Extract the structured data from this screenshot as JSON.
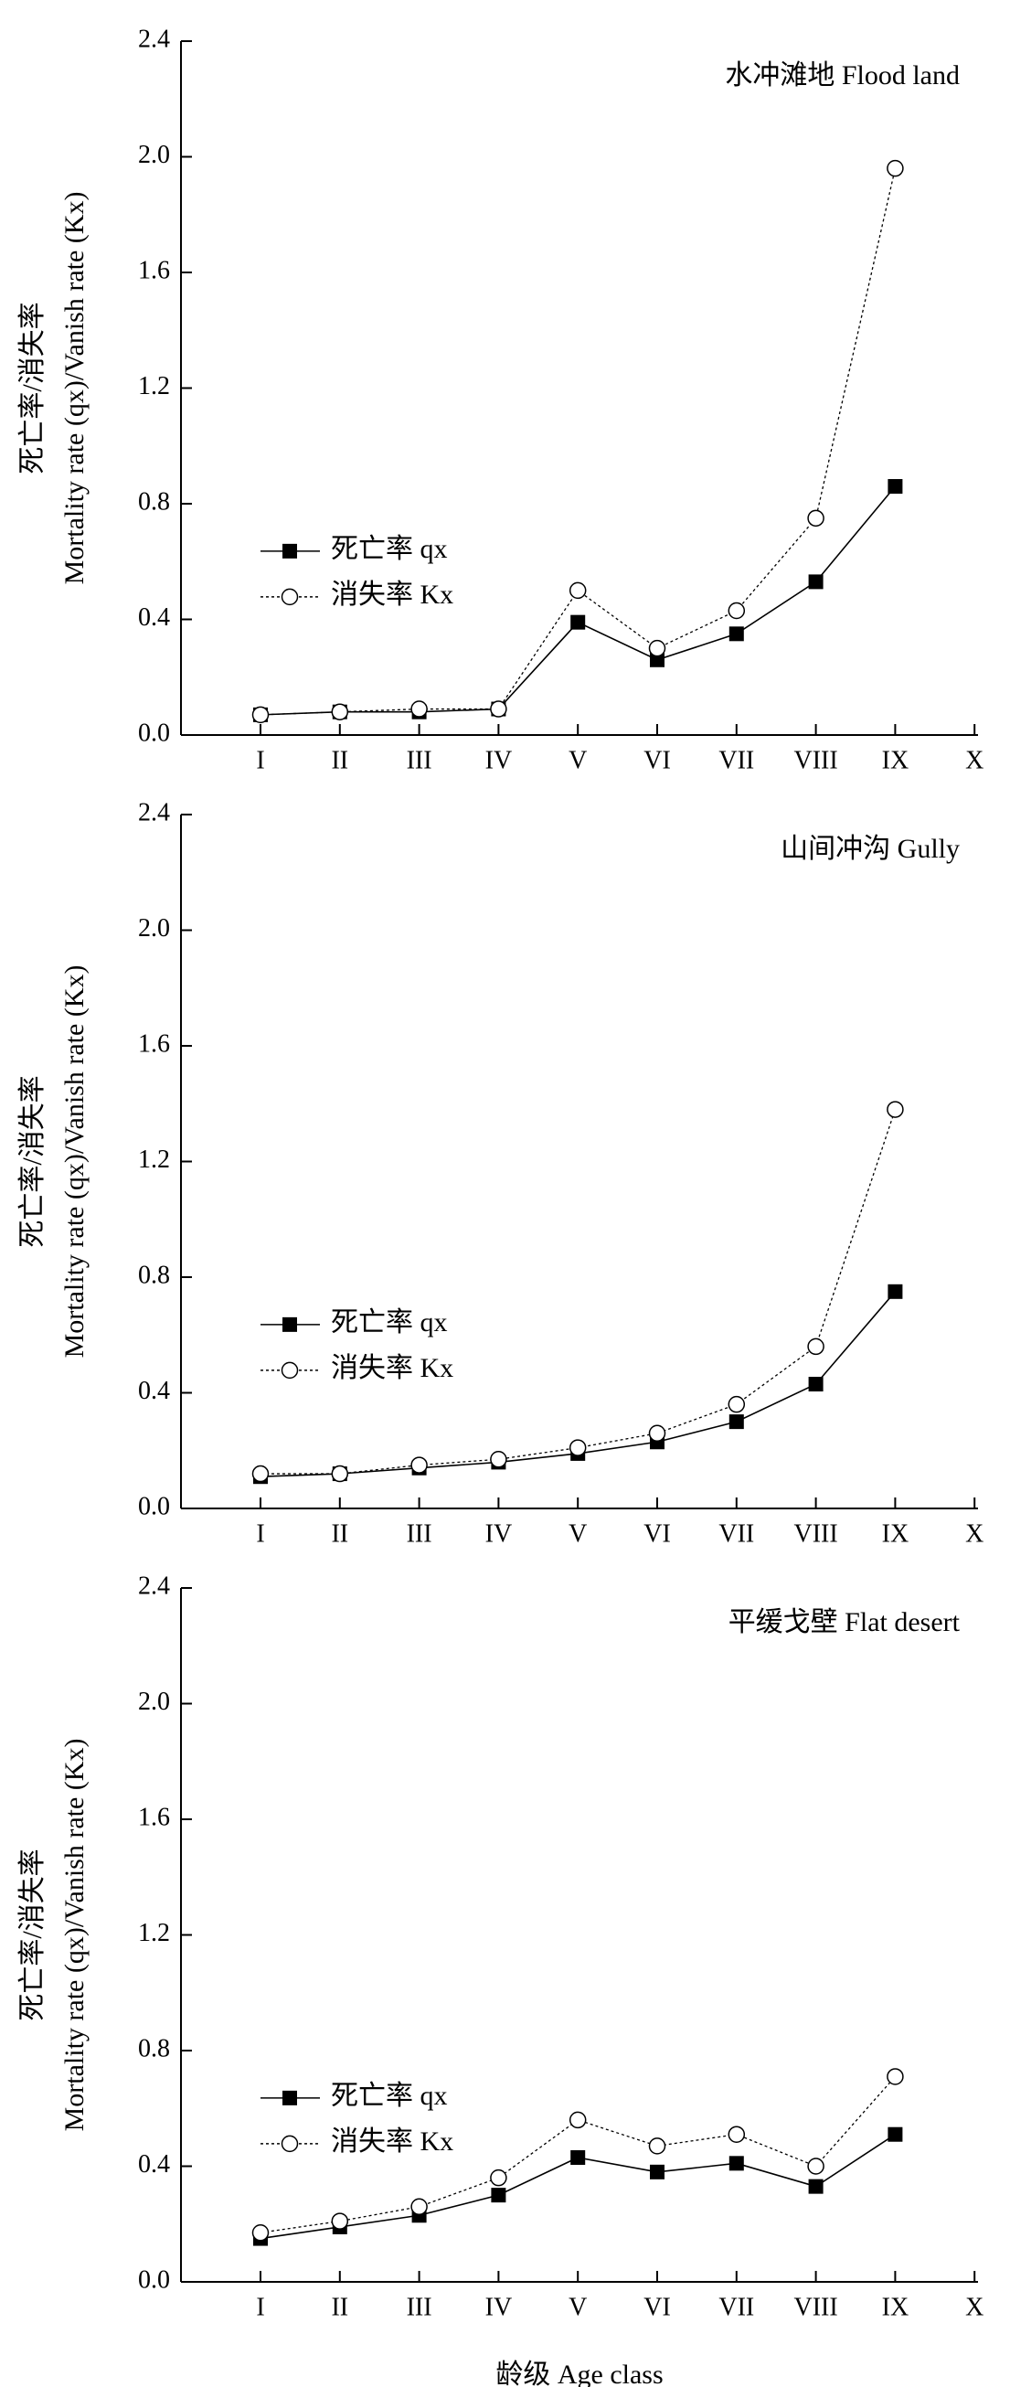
{
  "chart_data": [
    {
      "type": "line",
      "title": "水冲滩地 Flood land",
      "ylabel": [
        "死亡率/消失率",
        "Mortality rate (qx)/Vanish rate (Kx)"
      ],
      "categories": [
        "I",
        "II",
        "III",
        "IV",
        "V",
        "VI",
        "VII",
        "VIII",
        "IX",
        "X"
      ],
      "series": [
        {
          "name": "死亡率 qx",
          "color": "#000000",
          "marker": "square",
          "dash": false,
          "values": [
            0.07,
            0.08,
            0.08,
            0.09,
            0.39,
            0.26,
            0.35,
            0.53,
            0.86,
            null
          ]
        },
        {
          "name": "消失率 Kx",
          "color": "#000000",
          "marker": "circle",
          "dash": true,
          "values": [
            0.07,
            0.08,
            0.09,
            0.09,
            0.5,
            0.3,
            0.43,
            0.75,
            1.96,
            null
          ]
        }
      ],
      "ylim": [
        0,
        2.4
      ],
      "yticks": [
        {
          "value": 0,
          "label": "0.0"
        },
        0.4,
        0.8,
        1.2,
        1.6,
        {
          "value": 2,
          "label": "2.0"
        },
        2.4
      ]
    },
    {
      "type": "line",
      "title": "山间冲沟 Gully",
      "ylabel": [
        "死亡率/消失率",
        "Mortality rate (qx)/Vanish rate (Kx)"
      ],
      "categories": [
        "I",
        "II",
        "III",
        "IV",
        "V",
        "VI",
        "VII",
        "VIII",
        "IX",
        "X"
      ],
      "series": [
        {
          "name": "死亡率 qx",
          "color": "#000000",
          "marker": "square",
          "dash": false,
          "values": [
            0.11,
            0.12,
            0.14,
            0.16,
            0.19,
            0.23,
            0.3,
            0.43,
            0.75,
            null
          ]
        },
        {
          "name": "消失率 Kx",
          "color": "#000000",
          "marker": "circle",
          "dash": true,
          "values": [
            0.12,
            0.12,
            0.15,
            0.17,
            0.21,
            0.26,
            0.36,
            0.56,
            1.38,
            null
          ]
        }
      ],
      "ylim": [
        0,
        2.4
      ],
      "yticks": [
        {
          "value": 0,
          "label": "0.0"
        },
        0.4,
        0.8,
        1.2,
        1.6,
        {
          "value": 2,
          "label": "2.0"
        },
        2.4
      ]
    },
    {
      "type": "line",
      "title": "平缓戈壁 Flat desert",
      "ylabel": [
        "死亡率/消失率",
        "Mortality rate (qx)/Vanish rate (Kx)"
      ],
      "xlabel": "龄级 Age class",
      "categories": [
        "I",
        "II",
        "III",
        "IV",
        "V",
        "VI",
        "VII",
        "VIII",
        "IX",
        "X"
      ],
      "series": [
        {
          "name": "死亡率 qx",
          "color": "#000000",
          "marker": "square",
          "dash": false,
          "values": [
            0.15,
            0.19,
            0.23,
            0.3,
            0.43,
            0.38,
            0.41,
            0.33,
            0.51,
            null
          ]
        },
        {
          "name": "消失率 Kx",
          "color": "#000000",
          "marker": "circle",
          "dash": true,
          "values": [
            0.17,
            0.21,
            0.26,
            0.36,
            0.56,
            0.47,
            0.51,
            0.4,
            0.71,
            null
          ]
        }
      ],
      "ylim": [
        0,
        2.4
      ],
      "yticks": [
        {
          "value": 0,
          "label": "0.0"
        },
        0.4,
        0.8,
        1.2,
        1.6,
        {
          "value": 2,
          "label": "2.0"
        },
        2.4
      ]
    }
  ]
}
